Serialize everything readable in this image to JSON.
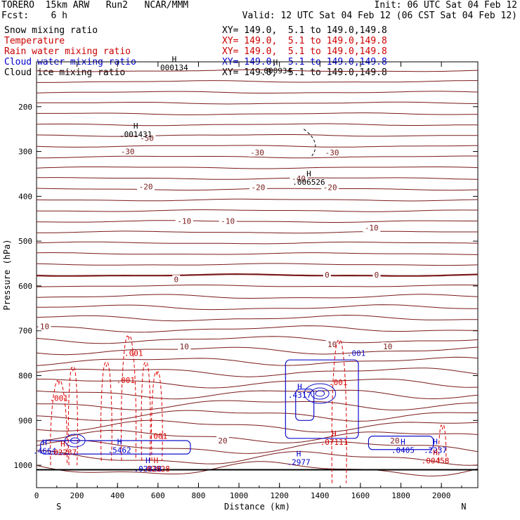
{
  "header": {
    "model": "TORERO  15km ARW   Run2   NCAR/MMM",
    "init": "Init: 06 UTC Sat 04 Feb 12",
    "fcst": "Fcst:    6 h",
    "valid": "Valid: 12 UTC Sat 04 Feb 12 (06 CST Sat 04 Feb 12)"
  },
  "legend": [
    {
      "label": "Snow mixing ratio",
      "range": "XY= 149.0,  5.1 to 149.0,149.8",
      "color": "#000000"
    },
    {
      "label": "Temperature",
      "range": "XY= 149.0,  5.1 to 149.0,149.8",
      "color": "#cc0000"
    },
    {
      "label": "Rain water mixing ratio",
      "range": "XY= 149.0,  5.1 to 149.0,149.8",
      "color": "#cc0000"
    },
    {
      "label": "Cloud water mixing ratio",
      "range": "XY= 149.0,  5.1 to 149.0,149.8",
      "color": "#0000cc"
    },
    {
      "label": "Cloud ice mixing ratio",
      "range": "XY= 149.0,  5.1 to 149.0,149.8",
      "color": "#000000"
    }
  ],
  "chart_data": {
    "type": "contour",
    "xlabel": "Distance (km)",
    "ylabel": "Pressure (hPa)",
    "xlim": [
      0,
      2180
    ],
    "ylim": [
      1050,
      100
    ],
    "xticks": [
      0,
      200,
      400,
      600,
      800,
      1000,
      1200,
      1400,
      1600,
      1800,
      2000
    ],
    "yticks": [
      200,
      300,
      400,
      500,
      600,
      700,
      800,
      900,
      1000
    ],
    "left_end": "S",
    "right_end": "N",
    "temperature_labels": [
      {
        "text": "-50",
        "x": 545,
        "p": 270
      },
      {
        "text": "-40",
        "x": 1295,
        "p": 360
      },
      {
        "text": "-30",
        "x": 450,
        "p": 300
      },
      {
        "text": "-30",
        "x": 1090,
        "p": 302
      },
      {
        "text": "-30",
        "x": 1460,
        "p": 302
      },
      {
        "text": "-20",
        "x": 540,
        "p": 378
      },
      {
        "text": "-20",
        "x": 1095,
        "p": 380
      },
      {
        "text": "-20",
        "x": 1450,
        "p": 380
      },
      {
        "text": "-10",
        "x": 730,
        "p": 455
      },
      {
        "text": "-10",
        "x": 945,
        "p": 455
      },
      {
        "text": "-10",
        "x": 1655,
        "p": 470
      },
      {
        "text": "0",
        "x": 690,
        "p": 585
      },
      {
        "text": "0",
        "x": 1435,
        "p": 575
      },
      {
        "text": "0",
        "x": 1680,
        "p": 575
      },
      {
        "text": "10",
        "x": 40,
        "p": 690
      },
      {
        "text": "10",
        "x": 730,
        "p": 735
      },
      {
        "text": "10",
        "x": 1460,
        "p": 730
      },
      {
        "text": "10",
        "x": 1735,
        "p": 735
      },
      {
        "text": "20",
        "x": 920,
        "p": 945
      },
      {
        "text": "20",
        "x": 1770,
        "p": 945
      }
    ],
    "extrema": [
      {
        "label": "H",
        "value": "000134",
        "x": 680,
        "p": 105,
        "color": "#000000"
      },
      {
        "label": "H",
        "value": ".001431",
        "x": 490,
        "p": 254,
        "color": "#000000"
      },
      {
        "label": "H",
        "value": ".000934",
        "x": 1180,
        "p": 112,
        "color": "#000000"
      },
      {
        "label": "H",
        "value": ".006526",
        "x": 1345,
        "p": 360,
        "color": "#000000"
      },
      {
        "label": "H",
        "value": ".4317",
        "x": 1300,
        "p": 835,
        "color": "#0000cc"
      },
      {
        "label": "H",
        "value": ".4664",
        "x": 40,
        "p": 960,
        "color": "#0000cc"
      },
      {
        "label": "H",
        "value": ".5462",
        "x": 410,
        "p": 958,
        "color": "#0000cc"
      },
      {
        "label": "H",
        "value": ".2977",
        "x": 1295,
        "p": 985,
        "color": "#0000cc"
      },
      {
        "label": "H",
        "value": ".0405",
        "x": 1810,
        "p": 958,
        "color": "#0000cc"
      },
      {
        "label": "H",
        "value": ".2237",
        "x": 1970,
        "p": 958,
        "color": "#0000cc"
      },
      {
        "label": "H",
        "value": ".02237",
        "x": 130,
        "p": 963,
        "color": "#cc0000"
      },
      {
        "label": "H",
        "value": ".07111",
        "x": 1470,
        "p": 940,
        "color": "#cc0000"
      },
      {
        "label": "H",
        "value": ".00458",
        "x": 1970,
        "p": 982,
        "color": "#cc0000"
      },
      {
        "label": "H",
        "value": ".02828",
        "x": 550,
        "p": 1000,
        "color": "#0000cc"
      },
      {
        "label": "H",
        "value": ".02828",
        "x": 590,
        "p": 1000,
        "color": "#cc0000"
      }
    ],
    "rain_labels": [
      {
        "text": ".001",
        "x": 440,
        "p": 810
      },
      {
        "text": ".001",
        "x": 110,
        "p": 850
      },
      {
        "text": ".001",
        "x": 480,
        "p": 750
      },
      {
        "text": ".001",
        "x": 1490,
        "p": 815
      },
      {
        "text": ".001",
        "x": 600,
        "p": 935
      }
    ],
    "cloud_labels": [
      {
        "text": ".001",
        "x": 1580,
        "p": 750
      }
    ]
  }
}
